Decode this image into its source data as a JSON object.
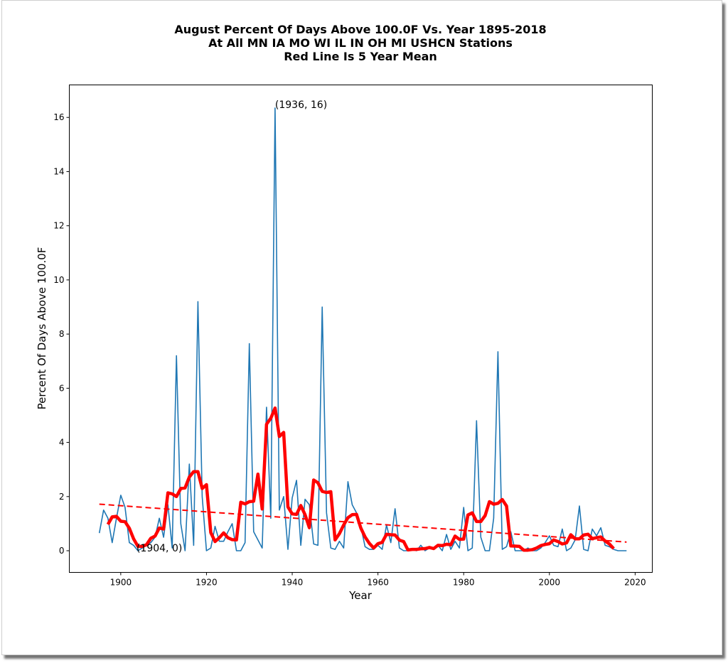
{
  "chart_data": {
    "type": "line",
    "title": [
      "August Percent Of Days Above 100.0F Vs. Year 1895-2018",
      "At All MN IA MO WI IL IN OH MI USHCN Stations",
      "Red Line Is 5 Year Mean"
    ],
    "xlabel": "Year",
    "ylabel": "Percent Of Days Above 100.0F",
    "xlim": [
      1888,
      2024
    ],
    "ylim": [
      -0.8,
      17.2
    ],
    "xticks": [
      1900,
      1920,
      1940,
      1960,
      1980,
      2000,
      2020
    ],
    "yticks": [
      0,
      2,
      4,
      6,
      8,
      10,
      12,
      14,
      16
    ],
    "grid": false,
    "x_start": 1895,
    "series": [
      {
        "name": "Percent of days above 100.0F",
        "color": "#1f77b4",
        "values": [
          0.65,
          1.5,
          1.2,
          0.3,
          1.2,
          2.05,
          1.6,
          0.3,
          0.2,
          0.0,
          0.1,
          0.2,
          0.3,
          0.5,
          1.2,
          0.5,
          1.7,
          0.1,
          7.2,
          1.0,
          0.0,
          3.2,
          0.2,
          9.2,
          2.0,
          0.0,
          0.1,
          0.9,
          0.35,
          0.35,
          0.7,
          1.0,
          0.0,
          0.0,
          0.3,
          7.65,
          0.7,
          0.4,
          0.1,
          5.3,
          1.2,
          16.35,
          1.5,
          2.0,
          0.05,
          1.95,
          2.6,
          0.2,
          1.9,
          1.7,
          0.25,
          0.2,
          9.0,
          1.4,
          0.1,
          0.05,
          0.35,
          0.1,
          2.55,
          1.7,
          1.4,
          0.9,
          0.15,
          0.05,
          0.05,
          0.2,
          0.05,
          0.95,
          0.3,
          1.55,
          0.1,
          0.0,
          0.0,
          0.05,
          0.0,
          0.2,
          0.0,
          0.1,
          0.1,
          0.2,
          0.0,
          0.6,
          0.05,
          0.35,
          0.1,
          1.6,
          0.0,
          0.1,
          4.8,
          0.5,
          0.0,
          0.0,
          1.2,
          7.35,
          0.05,
          0.15,
          0.7,
          0.0,
          0.0,
          0.0,
          0.1,
          0.0,
          0.0,
          0.1,
          0.3,
          0.55,
          0.2,
          0.15,
          0.8,
          0.0,
          0.1,
          0.4,
          1.65,
          0.05,
          0.0,
          0.8,
          0.55,
          0.85,
          0.2,
          0.15,
          0.05,
          0.0,
          0.0,
          0.0
        ]
      },
      {
        "name": "5 Year Mean",
        "color": "#ff0000",
        "window": 5
      },
      {
        "name": "Linear trend",
        "color": "#ff0000",
        "style": "dashed",
        "x": [
          1895,
          2018
        ],
        "y": [
          1.72,
          0.32
        ]
      }
    ],
    "annotations": [
      {
        "text": "(1936, 16)",
        "x": 1936,
        "y": 16.35
      },
      {
        "text": "(1904, 0)",
        "x": 1904,
        "y": 0
      }
    ]
  }
}
